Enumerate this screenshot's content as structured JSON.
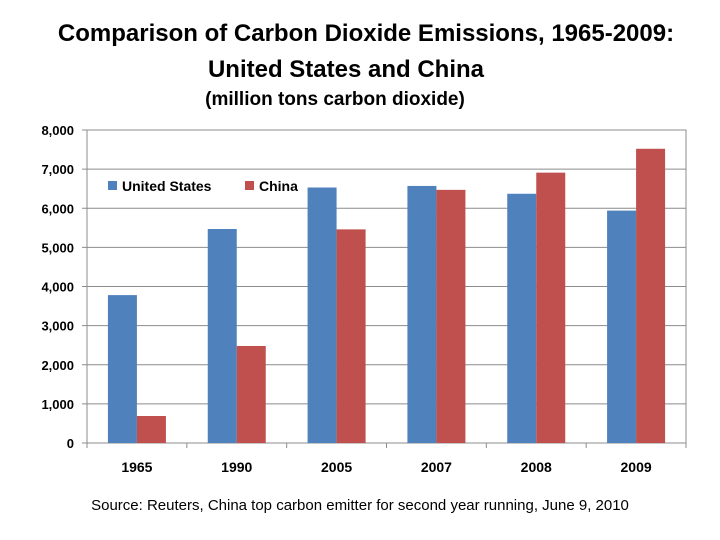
{
  "title_line1": "Comparison of Carbon Dioxide Emissions, 1965-2009:",
  "title_line2": "United States and China",
  "subtitle": "(million tons carbon dioxide)",
  "source": "Source: Reuters, China top carbon emitter for second year running, June 9, 2010",
  "colors": {
    "us": "#4F81BD",
    "china": "#C0504D",
    "grid": "#8c8c8c",
    "axis": "#8c8c8c"
  },
  "chart_data": {
    "type": "bar",
    "title": "Comparison of Carbon Dioxide Emissions, 1965-2009: United States and China",
    "subtitle": "(million tons carbon dioxide)",
    "categories": [
      "1965",
      "1990",
      "2005",
      "2007",
      "2008",
      "2009"
    ],
    "series": [
      {
        "name": "United States",
        "values": [
          3780,
          5470,
          6530,
          6570,
          6370,
          5940
        ]
      },
      {
        "name": "China",
        "values": [
          690,
          2480,
          5460,
          6470,
          6910,
          7520
        ]
      }
    ],
    "ylim": [
      0,
      8000
    ],
    "yticks": [
      0,
      1000,
      2000,
      3000,
      4000,
      5000,
      6000,
      7000,
      8000
    ],
    "ytick_labels": [
      "0",
      "1,000",
      "2,000",
      "3,000",
      "4,000",
      "5,000",
      "6,000",
      "7,000",
      "8,000"
    ],
    "xlabel": "",
    "ylabel": "",
    "grid": true,
    "legend_position": "top-left"
  }
}
